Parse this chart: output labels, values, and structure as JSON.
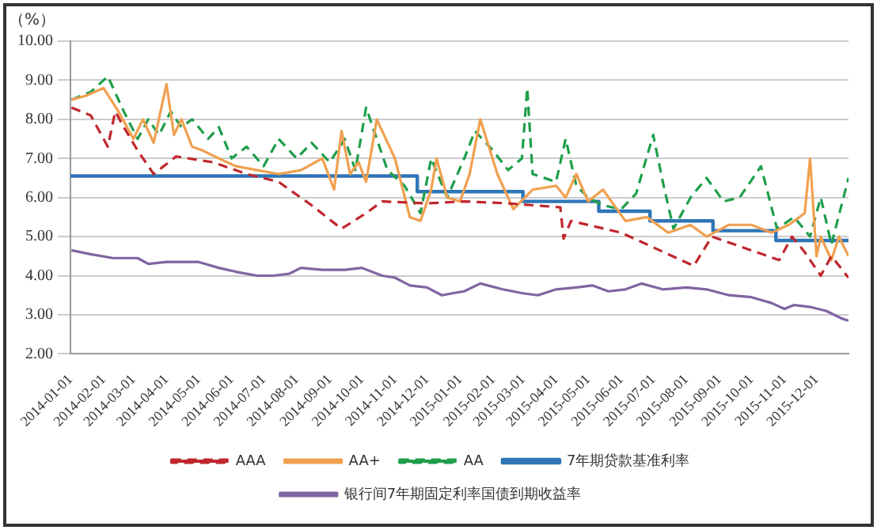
{
  "chart_data": {
    "type": "line",
    "ylabel": "（%）",
    "xlim": [
      "2014-01-01",
      "2015-12-31"
    ],
    "xticks": [
      "2014-01-01",
      "2014-02-01",
      "2014-03-01",
      "2014-04-01",
      "2014-05-01",
      "2014-06-01",
      "2014-07-01",
      "2014-08-01",
      "2014-09-01",
      "2014-10-01",
      "2014-11-01",
      "2014-12-01",
      "2015-01-01",
      "2015-02-01",
      "2015-03-01",
      "2015-04-01",
      "2015-05-01",
      "2015-06-01",
      "2015-07-01",
      "2015-08-01",
      "2015-09-01",
      "2015-10-01",
      "2015-11-01",
      "2015-12-01"
    ],
    "ylim": [
      2,
      10
    ],
    "yticks": [
      {
        "value": 2,
        "label": "2.00"
      },
      {
        "value": 3,
        "label": "3.00"
      },
      {
        "value": 4,
        "label": "4.00"
      },
      {
        "value": 5,
        "label": "5.00"
      },
      {
        "value": 6,
        "label": "6.00"
      },
      {
        "value": 7,
        "label": "7.00"
      },
      {
        "value": 8,
        "label": "8.00"
      },
      {
        "value": 9,
        "label": "9.00"
      },
      {
        "value": 10,
        "label": "10.00"
      }
    ],
    "grid": "y",
    "legend": "bottom",
    "marker": "none",
    "series": [
      {
        "name": "AAA",
        "color": "#c0272d",
        "line_style": "dashed",
        "x": [
          "2014-01-02",
          "2014-01-20",
          "2014-02-05",
          "2014-02-12",
          "2014-02-20",
          "2014-03-05",
          "2014-03-20",
          "2014-04-10",
          "2014-05-15",
          "2014-06-15",
          "2014-07-15",
          "2014-08-15",
          "2014-09-12",
          "2014-10-05",
          "2014-10-20",
          "2014-12-01",
          "2015-01-05",
          "2015-02-15",
          "2015-04-05",
          "2015-04-08",
          "2015-04-15",
          "2015-06-01",
          "2015-08-08",
          "2015-08-25",
          "2015-10-27",
          "2015-11-08",
          "2015-11-20",
          "2015-12-05",
          "2015-12-15",
          "2015-12-31"
        ],
        "values": [
          8.3,
          8.1,
          7.3,
          8.2,
          7.8,
          7.2,
          6.6,
          7.05,
          6.9,
          6.6,
          6.4,
          5.8,
          5.2,
          5.6,
          5.9,
          5.85,
          5.9,
          5.85,
          5.75,
          4.95,
          5.4,
          5.1,
          4.25,
          5.0,
          4.4,
          5.0,
          4.6,
          4.0,
          4.5,
          3.95
        ]
      },
      {
        "name": "AA+",
        "color": "#f0a050",
        "x": [
          "2014-01-02",
          "2014-01-15",
          "2014-02-01",
          "2014-02-15",
          "2014-03-01",
          "2014-03-10",
          "2014-03-20",
          "2014-04-01",
          "2014-04-08",
          "2014-04-15",
          "2014-04-25",
          "2014-05-05",
          "2014-05-20",
          "2014-06-05",
          "2014-06-25",
          "2014-07-15",
          "2014-08-05",
          "2014-08-25",
          "2014-09-05",
          "2014-09-12",
          "2014-09-20",
          "2014-09-28",
          "2014-10-05",
          "2014-10-15",
          "2014-11-01",
          "2014-11-15",
          "2014-11-25",
          "2014-12-05",
          "2014-12-10",
          "2014-12-20",
          "2015-01-01",
          "2015-01-10",
          "2015-01-20",
          "2015-02-05",
          "2015-02-20",
          "2015-03-10",
          "2015-04-01",
          "2015-04-10",
          "2015-04-20",
          "2015-05-01",
          "2015-05-15",
          "2015-06-05",
          "2015-06-25",
          "2015-07-15",
          "2015-08-05",
          "2015-08-20",
          "2015-09-10",
          "2015-10-01",
          "2015-10-20",
          "2015-11-05",
          "2015-11-20",
          "2015-11-25",
          "2015-12-01",
          "2015-12-05",
          "2015-12-15",
          "2015-12-22",
          "2015-12-31"
        ],
        "values": [
          8.5,
          8.6,
          8.8,
          8.2,
          7.5,
          8.0,
          7.4,
          8.9,
          7.6,
          8.0,
          7.3,
          7.2,
          7.0,
          6.8,
          6.7,
          6.6,
          6.7,
          7.0,
          6.2,
          7.7,
          6.6,
          6.9,
          6.4,
          8.0,
          7.0,
          5.5,
          5.4,
          6.2,
          7.0,
          6.0,
          5.9,
          6.6,
          8.0,
          6.6,
          5.7,
          6.2,
          6.3,
          6.0,
          6.6,
          5.9,
          6.2,
          5.4,
          5.5,
          5.1,
          5.3,
          5.0,
          5.3,
          5.3,
          5.1,
          5.3,
          5.6,
          7.0,
          4.5,
          5.0,
          4.4,
          5.0,
          4.5
        ]
      },
      {
        "name": "AA",
        "color": "#1e9e4a",
        "line_style": "dashed",
        "x": [
          "2014-01-02",
          "2014-01-20",
          "2014-02-05",
          "2014-02-20",
          "2014-03-05",
          "2014-03-15",
          "2014-03-25",
          "2014-04-05",
          "2014-04-15",
          "2014-04-25",
          "2014-05-10",
          "2014-05-20",
          "2014-06-01",
          "2014-06-15",
          "2014-07-01",
          "2014-07-15",
          "2014-08-01",
          "2014-08-15",
          "2014-09-01",
          "2014-09-15",
          "2014-09-25",
          "2014-10-05",
          "2014-10-15",
          "2014-10-25",
          "2014-11-10",
          "2014-11-25",
          "2014-12-05",
          "2014-12-20",
          "2015-01-05",
          "2015-01-15",
          "2015-02-01",
          "2015-02-15",
          "2015-02-28",
          "2015-03-05",
          "2015-03-10",
          "2015-04-01",
          "2015-04-10",
          "2015-04-20",
          "2015-05-01",
          "2015-05-15",
          "2015-06-01",
          "2015-06-15",
          "2015-07-01",
          "2015-07-10",
          "2015-07-20",
          "2015-08-05",
          "2015-08-20",
          "2015-09-05",
          "2015-09-20",
          "2015-10-10",
          "2015-10-25",
          "2015-11-10",
          "2015-11-25",
          "2015-12-05",
          "2015-12-15",
          "2015-12-31"
        ],
        "values": [
          8.5,
          8.7,
          9.1,
          8.2,
          7.5,
          8.0,
          7.6,
          8.2,
          7.8,
          8.0,
          7.5,
          7.8,
          7.0,
          7.3,
          6.8,
          7.5,
          7.0,
          7.4,
          6.9,
          7.5,
          6.7,
          8.3,
          7.5,
          6.7,
          6.3,
          5.6,
          7.0,
          6.0,
          7.0,
          7.7,
          7.2,
          6.7,
          7.0,
          8.8,
          6.6,
          6.4,
          7.5,
          6.3,
          6.0,
          5.8,
          5.7,
          6.1,
          7.6,
          6.4,
          5.2,
          6.0,
          6.5,
          5.9,
          6.0,
          6.8,
          5.2,
          5.5,
          5.0,
          6.0,
          4.8,
          6.5
        ]
      },
      {
        "name": "7年期贷款基准利率",
        "color": "#2e75b6",
        "type": "step",
        "x": [
          "2014-01-01",
          "2014-11-22",
          "2015-03-01",
          "2015-05-11",
          "2015-06-28",
          "2015-08-26",
          "2015-10-24",
          "2015-12-31"
        ],
        "values": [
          6.55,
          6.15,
          5.9,
          5.65,
          5.4,
          5.15,
          4.9,
          4.9
        ]
      },
      {
        "name": "银行间7年期固定利率国债到期收益率",
        "color": "#8064a2",
        "x": [
          "2014-01-02",
          "2014-01-20",
          "2014-02-10",
          "2014-03-05",
          "2014-03-15",
          "2014-04-01",
          "2014-05-01",
          "2014-05-20",
          "2014-06-05",
          "2014-06-25",
          "2014-07-10",
          "2014-07-25",
          "2014-08-05",
          "2014-08-25",
          "2014-09-15",
          "2014-10-01",
          "2014-10-20",
          "2014-11-01",
          "2014-11-15",
          "2014-12-01",
          "2014-12-15",
          "2014-12-25",
          "2015-01-05",
          "2015-01-20",
          "2015-02-10",
          "2015-03-01",
          "2015-03-15",
          "2015-04-01",
          "2015-04-20",
          "2015-05-05",
          "2015-05-20",
          "2015-06-05",
          "2015-06-20",
          "2015-07-10",
          "2015-08-01",
          "2015-08-20",
          "2015-09-10",
          "2015-10-01",
          "2015-10-20",
          "2015-11-01",
          "2015-11-10",
          "2015-11-25",
          "2015-12-10",
          "2015-12-25",
          "2015-12-31"
        ],
        "values": [
          4.65,
          4.55,
          4.45,
          4.45,
          4.3,
          4.35,
          4.35,
          4.2,
          4.1,
          4.0,
          4.0,
          4.05,
          4.2,
          4.15,
          4.15,
          4.2,
          4.0,
          3.95,
          3.75,
          3.7,
          3.5,
          3.55,
          3.6,
          3.8,
          3.65,
          3.55,
          3.5,
          3.65,
          3.7,
          3.75,
          3.6,
          3.65,
          3.8,
          3.65,
          3.7,
          3.65,
          3.5,
          3.45,
          3.3,
          3.15,
          3.25,
          3.2,
          3.1,
          2.9,
          2.85
        ]
      }
    ]
  }
}
